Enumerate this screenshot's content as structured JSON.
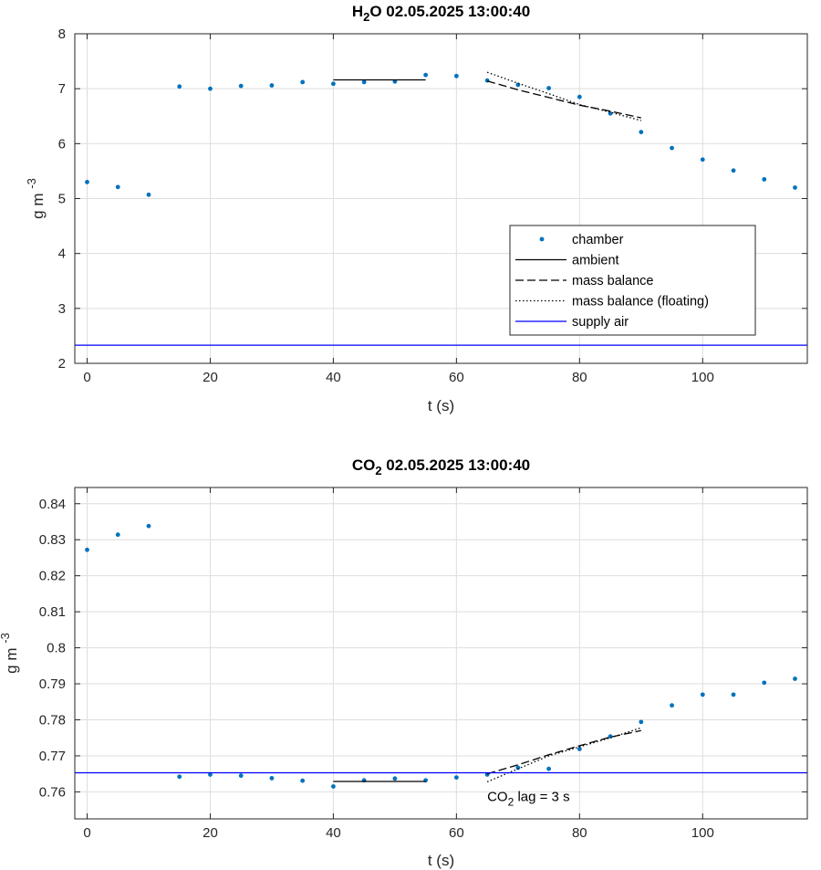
{
  "chart_data": [
    {
      "type": "scatter",
      "title_main": "H",
      "title_sub": "2",
      "title_rest": "O  02.05.2025 13:00:40",
      "xlabel": "t (s)",
      "ylabel_main": "g m",
      "ylabel_sup": "-3",
      "xlim": [
        -2,
        117
      ],
      "ylim": [
        2,
        8
      ],
      "xticks": [
        0,
        20,
        40,
        60,
        80,
        100
      ],
      "yticks": [
        2,
        3,
        4,
        5,
        6,
        7,
        8
      ],
      "grid": true,
      "legend_position": "lower-right",
      "series": [
        {
          "name": "chamber",
          "kind": "points",
          "color": "#0072BD",
          "x": [
            0,
            5,
            10,
            15,
            20,
            25,
            30,
            35,
            40,
            45,
            50,
            55,
            60,
            65,
            70,
            75,
            80,
            85,
            90,
            95,
            100,
            105,
            110,
            115
          ],
          "y": [
            5.3,
            5.21,
            5.07,
            7.04,
            7.0,
            7.05,
            7.06,
            7.12,
            7.09,
            7.12,
            7.13,
            7.25,
            7.23,
            7.15,
            7.07,
            7.01,
            6.85,
            6.55,
            6.21,
            5.92,
            5.71,
            5.51,
            5.35,
            5.2
          ]
        },
        {
          "name": "ambient",
          "kind": "solid",
          "color": "#000000",
          "x": [
            40,
            55
          ],
          "y": [
            7.16,
            7.16
          ]
        },
        {
          "name": "mass balance",
          "kind": "dashed",
          "color": "#000000",
          "x": [
            65,
            70,
            75,
            80,
            85,
            90
          ],
          "y": [
            7.14,
            6.98,
            6.84,
            6.7,
            6.59,
            6.47
          ]
        },
        {
          "name": "mass balance (floating)",
          "kind": "dotted",
          "color": "#000000",
          "x": [
            65,
            70,
            75,
            80,
            85,
            90
          ],
          "y": [
            7.3,
            7.1,
            6.91,
            6.71,
            6.57,
            6.42
          ]
        },
        {
          "name": "supply air",
          "kind": "solid",
          "color": "#0000FF",
          "x": [
            -2,
            117
          ],
          "y": [
            2.33,
            2.33
          ]
        }
      ]
    },
    {
      "type": "scatter",
      "title_main": "CO",
      "title_sub": "2",
      "title_rest": "  02.05.2025 13:00:40",
      "xlabel": "t (s)",
      "ylabel_main": "g m",
      "ylabel_sup": "-3",
      "xlim": [
        -2,
        117
      ],
      "ylim": [
        0.7525,
        0.8445
      ],
      "xticks": [
        0,
        20,
        40,
        60,
        80,
        100
      ],
      "yticks": [
        0.76,
        0.77,
        0.78,
        0.79,
        0.8,
        0.81,
        0.82,
        0.83,
        0.84
      ],
      "grid": true,
      "annotation": {
        "main": "CO",
        "sub": "2",
        "rest": " lag = 3 s",
        "x": 65,
        "y": 0.7575
      },
      "series": [
        {
          "name": "chamber",
          "kind": "points",
          "color": "#0072BD",
          "x": [
            0,
            5,
            10,
            15,
            20,
            25,
            30,
            35,
            40,
            45,
            50,
            55,
            60,
            65,
            70,
            75,
            80,
            85,
            90,
            95,
            100,
            105,
            110,
            115
          ],
          "y": [
            0.8272,
            0.8314,
            0.8338,
            0.7642,
            0.7648,
            0.7645,
            0.7638,
            0.7631,
            0.7615,
            0.7632,
            0.7637,
            0.7632,
            0.764,
            0.7648,
            0.7667,
            0.7664,
            0.7719,
            0.7754,
            0.7794,
            0.784,
            0.787,
            0.787,
            0.7903,
            0.7914
          ]
        },
        {
          "name": "ambient",
          "kind": "solid",
          "color": "#000000",
          "x": [
            40,
            55
          ],
          "y": [
            0.7629,
            0.7629
          ]
        },
        {
          "name": "mass balance",
          "kind": "dashed",
          "color": "#000000",
          "x": [
            65,
            70,
            75,
            80,
            85,
            90
          ],
          "y": [
            0.765,
            0.7675,
            0.7703,
            0.7728,
            0.7752,
            0.777
          ]
        },
        {
          "name": "mass balance (floating)",
          "kind": "dotted",
          "color": "#000000",
          "x": [
            65,
            70,
            75,
            80,
            85,
            90
          ],
          "y": [
            0.7628,
            0.7664,
            0.77,
            0.7725,
            0.775,
            0.7778
          ]
        },
        {
          "name": "supply air",
          "kind": "solid",
          "color": "#0000FF",
          "x": [
            -2,
            117
          ],
          "y": [
            0.7653,
            0.7653
          ]
        }
      ]
    }
  ]
}
